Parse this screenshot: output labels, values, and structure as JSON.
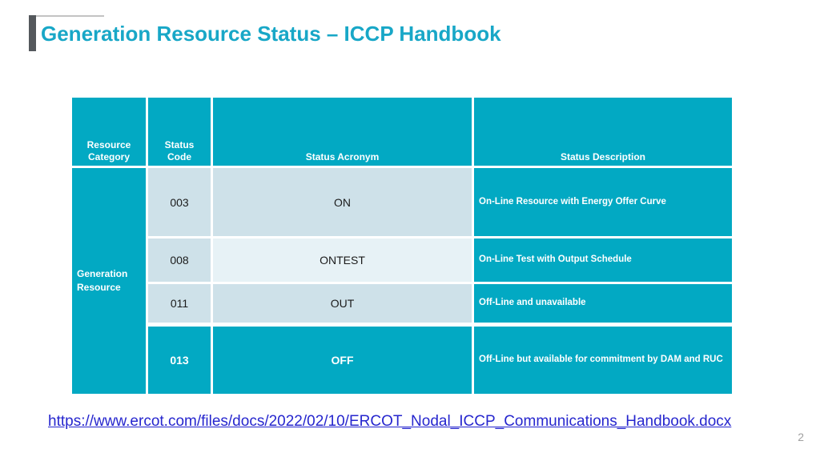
{
  "slide": {
    "title": "Generation Resource Status – ICCP Handbook",
    "link": "https://www.ercot.com/files/docs/2022/02/10/ERCOT_Nodal_ICCP_Communications_Handbook.docx",
    "page_number": "2"
  },
  "table": {
    "headers": [
      "Resource\nCategory",
      "Status\nCode",
      "Status Acronym",
      "Status Description"
    ],
    "category": "Generation Resource",
    "rows": [
      {
        "code": "003",
        "acronym": "ON",
        "description": "On-Line Resource with Energy Offer Curve"
      },
      {
        "code": "008",
        "acronym": "ONTEST",
        "description": "On-Line Test with Output Schedule"
      },
      {
        "code": "011",
        "acronym": "OUT",
        "description": "Off-Line and unavailable"
      },
      {
        "code": "013",
        "acronym": "OFF",
        "description": "Off-Line but available for commitment by DAM and RUC"
      }
    ]
  },
  "colors": {
    "teal": "#02a9c3",
    "row_light_blue": "#cee1e9",
    "row_lighter_blue": "#e7f2f6",
    "title_teal": "#18a7c7",
    "accent_bar_gray": "#54585c",
    "link_blue": "#2626ce",
    "page_number_gray": "#a0a0a0"
  }
}
